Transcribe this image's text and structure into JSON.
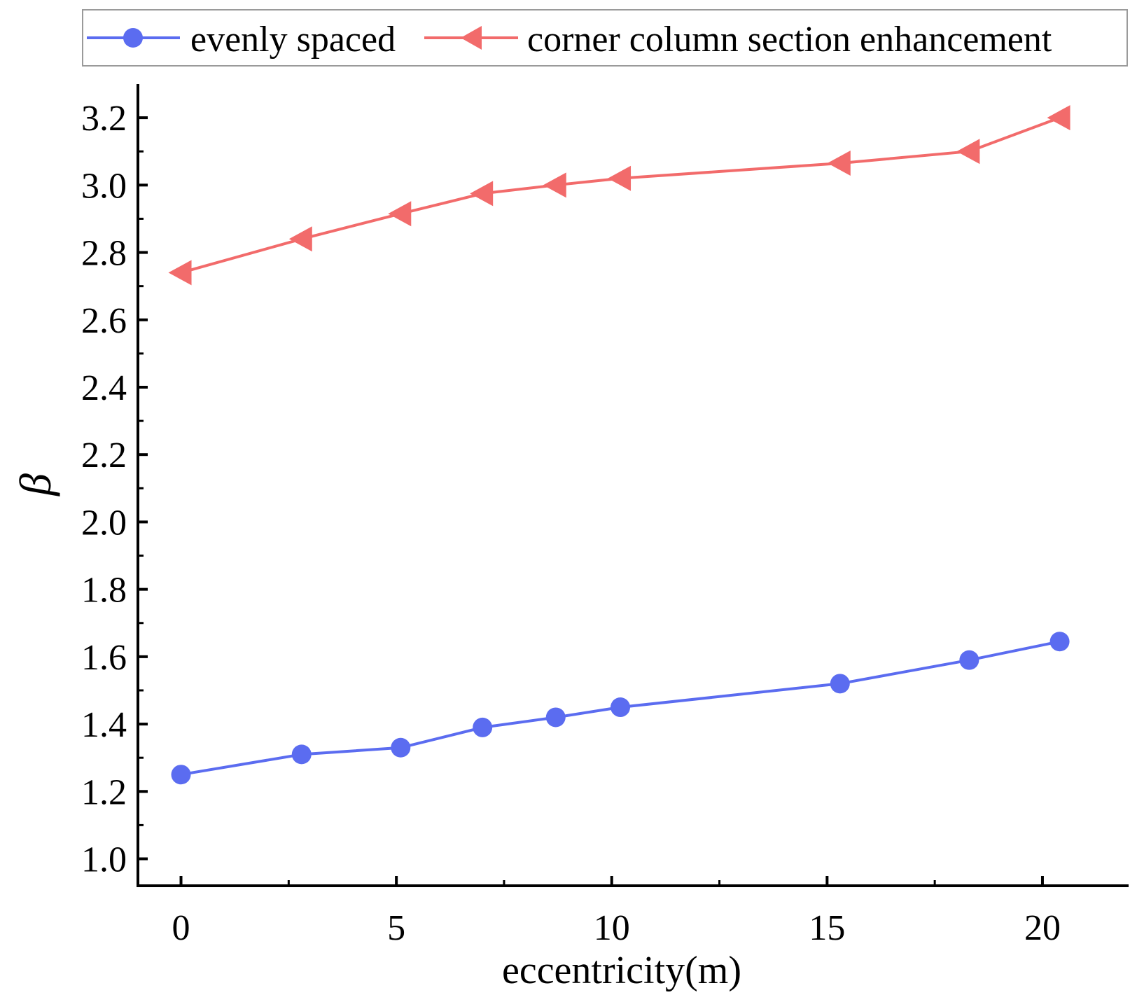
{
  "chart_data": {
    "type": "line",
    "title": "",
    "xlabel": "eccentricity(m)",
    "ylabel": "β",
    "xlim": [
      -1,
      22
    ],
    "ylim": [
      0.92,
      3.3
    ],
    "x_ticks": [
      0,
      5,
      10,
      15,
      20
    ],
    "x_tick_labels": [
      "0",
      "5",
      "10",
      "15",
      "20"
    ],
    "y_ticks": [
      1.0,
      1.2,
      1.4,
      1.6,
      1.8,
      2.0,
      2.2,
      2.4,
      2.6,
      2.8,
      3.0,
      3.2
    ],
    "y_tick_labels": [
      "1.0",
      "1.2",
      "1.4",
      "1.6",
      "1.8",
      "2.0",
      "2.2",
      "2.4",
      "2.6",
      "2.8",
      "3.0",
      "3.2"
    ],
    "grid": false,
    "legend_position": "top",
    "series": [
      {
        "name": "evenly spaced",
        "color": "#5b6cf0",
        "marker": "circle",
        "x": [
          0,
          2.8,
          5.1,
          7.0,
          8.7,
          10.2,
          15.3,
          18.3,
          20.4
        ],
        "y": [
          1.25,
          1.31,
          1.33,
          1.39,
          1.42,
          1.45,
          1.52,
          1.59,
          1.645
        ]
      },
      {
        "name": "corner column section enhancement",
        "color": "#f26b6b",
        "marker": "left-triangle",
        "x": [
          0,
          2.8,
          5.1,
          7.0,
          8.7,
          10.2,
          15.3,
          18.3,
          20.4
        ],
        "y": [
          2.74,
          2.84,
          2.915,
          2.975,
          3.0,
          3.02,
          3.065,
          3.1,
          3.2
        ]
      }
    ]
  }
}
